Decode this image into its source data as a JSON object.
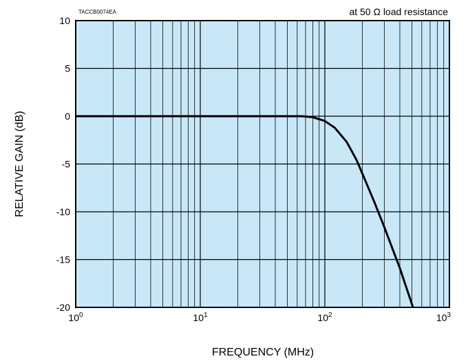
{
  "chart_data": {
    "type": "line",
    "xlabel": "FREQUENCY (MHz)",
    "ylabel": "RELATIVE GAIN (dB)",
    "x_scale": "log",
    "xlim": [
      1,
      1000
    ],
    "ylim": [
      -20,
      10
    ],
    "grid": true,
    "legend": "none",
    "x_ticks": [
      {
        "value": 1,
        "base": "10",
        "exp": "0"
      },
      {
        "value": 10,
        "base": "10",
        "exp": "1"
      },
      {
        "value": 100,
        "base": "10",
        "exp": "2"
      },
      {
        "value": 1000,
        "base": "10",
        "exp": "3"
      }
    ],
    "y_ticks": [
      {
        "value": 10,
        "label": "10"
      },
      {
        "value": 5,
        "label": "5"
      },
      {
        "value": 0,
        "label": "0"
      },
      {
        "value": -5,
        "label": "-5"
      },
      {
        "value": -10,
        "label": "-10"
      },
      {
        "value": -15,
        "label": "-15"
      },
      {
        "value": -20,
        "label": "-20"
      }
    ],
    "annotations": {
      "code": "TACCB0074EA",
      "condition": "at 50 Ω load resistance"
    },
    "series": [
      {
        "x": [
          1,
          10,
          50,
          65,
          80,
          100,
          120,
          150,
          180,
          200,
          250,
          300,
          400,
          510
        ],
        "y": [
          0,
          0,
          0,
          0,
          -0.1,
          -0.5,
          -1.2,
          -2.7,
          -4.6,
          -6.0,
          -9.0,
          -11.6,
          -15.9,
          -20
        ]
      }
    ],
    "colors": {
      "plot_background": "#c8e8f8",
      "grid": "#000000",
      "line": "#000000"
    }
  }
}
